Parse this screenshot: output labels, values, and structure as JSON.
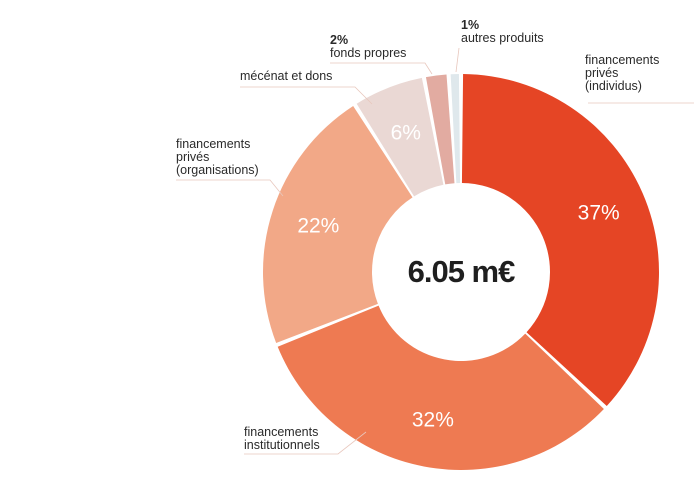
{
  "chart_data": {
    "type": "pie",
    "center_label": "6.05 m€",
    "slices": [
      {
        "label_lines": [
          "financements",
          "privés",
          "(individus)"
        ],
        "percent_label": "37%",
        "value": 37,
        "color": "#e54525"
      },
      {
        "label_lines": [
          "financements",
          "institutionnels"
        ],
        "percent_label": "32%",
        "value": 32,
        "color": "#ee7a52"
      },
      {
        "label_lines": [
          "financements",
          "privés",
          "(organisations)"
        ],
        "percent_label": "22%",
        "value": 22,
        "color": "#f2a887"
      },
      {
        "label_lines": [
          "mécénat et dons"
        ],
        "percent_label": "6%",
        "value": 6,
        "color": "#ead8d4"
      },
      {
        "label_lines": [
          "fonds propres"
        ],
        "percent_label": "2%",
        "value": 2,
        "color": "#e2aba1"
      },
      {
        "label_lines": [
          "autres produits"
        ],
        "percent_label": "1%",
        "value": 1,
        "color": "#dfe8ec"
      }
    ]
  }
}
